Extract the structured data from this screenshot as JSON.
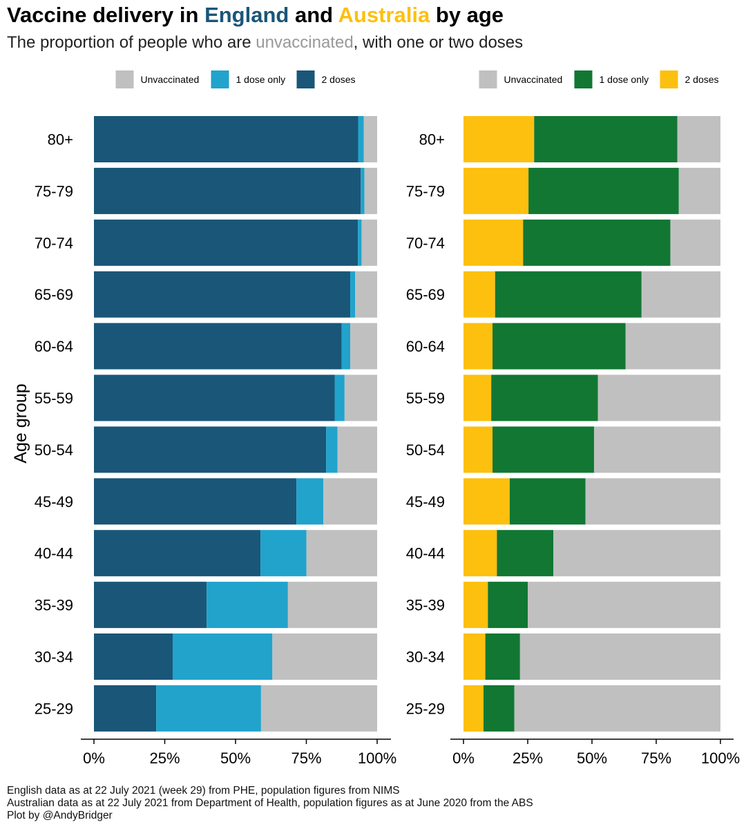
{
  "title": {
    "part1": "Vaccine delivery in ",
    "country1": "England",
    "part2": " and ",
    "country2": "Australia",
    "part3": " by age",
    "country1_color": "#1a5678",
    "country2_color": "#fdc00f"
  },
  "subtitle": {
    "part1": "The proportion of people who are ",
    "highlight": "unvaccinated",
    "part2": ", with one or two doses",
    "highlight_color": "#999999"
  },
  "caption": [
    "English data as at 22 July 2021 (week 29) from PHE, population figures from NIMS",
    "Australian data as at 22 July 2021 from Department of Health, population figures as at June 2020 from the ABS",
    "Plot by @AndyBridger"
  ],
  "chart_data": [
    {
      "type": "bar",
      "orientation": "horizontal",
      "stacked": true,
      "country": "England",
      "ylabel": "Age group",
      "xlabel": "",
      "xlim": [
        0,
        100
      ],
      "x_ticks": [
        "0%",
        "25%",
        "50%",
        "75%",
        "100%"
      ],
      "legend_position": "top",
      "categories": [
        "80+",
        "75-79",
        "70-74",
        "65-69",
        "60-64",
        "55-59",
        "50-54",
        "45-49",
        "40-44",
        "35-39",
        "30-34",
        "25-29"
      ],
      "series": [
        {
          "name": "2 doses",
          "color": "#1a5678",
          "values": [
            93.3,
            94.2,
            93.2,
            90.5,
            87.5,
            85,
            82,
            71.5,
            58.8,
            39.8,
            27.8,
            22
          ]
        },
        {
          "name": "1 dose only",
          "color": "#21a3cc",
          "values": [
            2,
            1.3,
            1.3,
            1.7,
            3,
            3.5,
            4,
            9.5,
            16.2,
            28.7,
            35.2,
            37
          ]
        },
        {
          "name": "Unvaccinated",
          "color": "#c0c0c0",
          "values": [
            4.7,
            4.5,
            5.5,
            7.8,
            9.5,
            11.5,
            14,
            19,
            25,
            31.5,
            37,
            41
          ]
        }
      ],
      "legend_order": [
        "Unvaccinated",
        "1 dose only",
        "2 doses"
      ]
    },
    {
      "type": "bar",
      "orientation": "horizontal",
      "stacked": true,
      "country": "Australia",
      "xlabel": "",
      "xlim": [
        0,
        100
      ],
      "x_ticks": [
        "0%",
        "25%",
        "50%",
        "75%",
        "100%"
      ],
      "legend_position": "top",
      "categories": [
        "80+",
        "75-79",
        "70-74",
        "65-69",
        "60-64",
        "55-59",
        "50-54",
        "45-49",
        "40-44",
        "35-39",
        "30-34",
        "25-29"
      ],
      "series": [
        {
          "name": "2 doses",
          "color": "#fdc00f",
          "values": [
            27.5,
            25.3,
            23.2,
            12.3,
            11.3,
            10.8,
            11.3,
            18,
            13,
            9.5,
            8.5,
            7.8
          ]
        },
        {
          "name": "1 dose only",
          "color": "#117733",
          "values": [
            55.7,
            58.5,
            57.3,
            57,
            51.8,
            41.5,
            39.5,
            29.5,
            22,
            15.5,
            13.5,
            12
          ]
        },
        {
          "name": "Unvaccinated",
          "color": "#c0c0c0",
          "values": [
            16.8,
            16.2,
            19.5,
            30.7,
            36.9,
            47.7,
            49.2,
            52.5,
            65,
            75,
            78,
            80.2
          ]
        }
      ],
      "legend_order": [
        "Unvaccinated",
        "1 dose only",
        "2 doses"
      ]
    }
  ]
}
